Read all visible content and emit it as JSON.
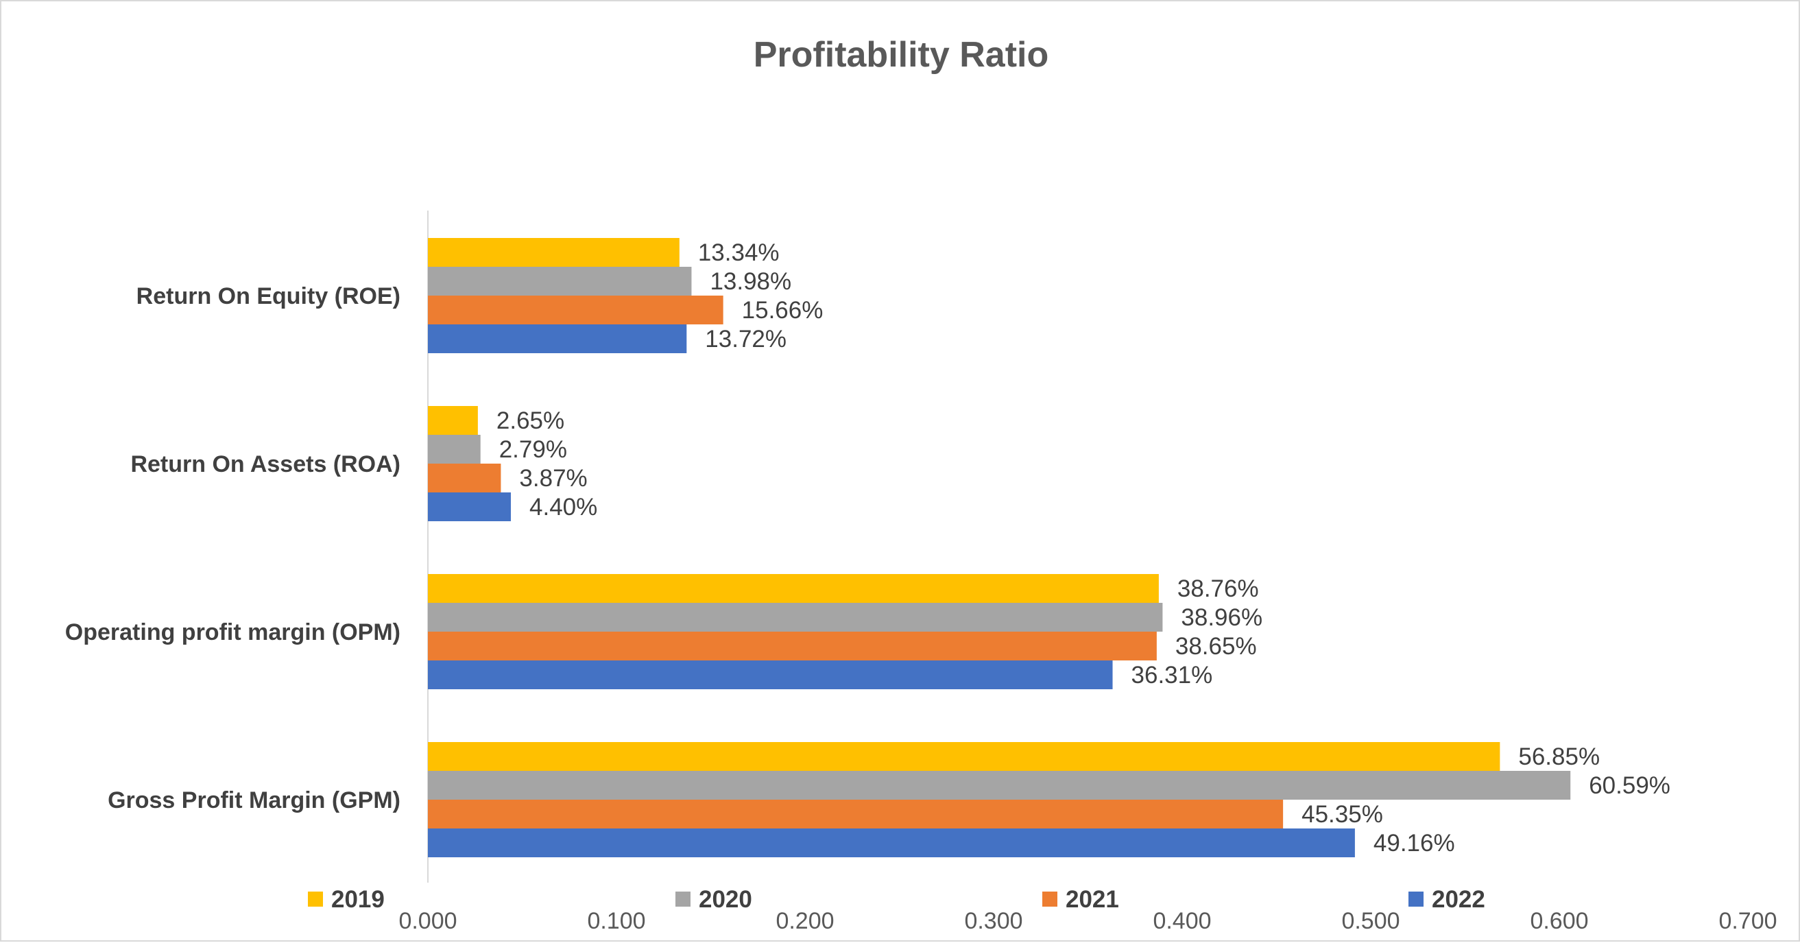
{
  "chart_data": {
    "type": "bar",
    "orientation": "horizontal",
    "title": "Profitability Ratio",
    "xlabel": "",
    "ylabel": "",
    "categories": [
      "Return On Equity (ROE)",
      "Return On Assets (ROA)",
      "Operating profit margin (OPM)",
      "Gross Profit Margin (GPM)"
    ],
    "series": [
      {
        "name": "2019",
        "color": "#FFC000",
        "values": [
          0.1334,
          0.0265,
          0.3876,
          0.5685
        ],
        "labels": [
          "13.34%",
          "2.65%",
          "38.76%",
          "56.85%"
        ]
      },
      {
        "name": "2020",
        "color": "#A5A5A5",
        "values": [
          0.1398,
          0.0279,
          0.3896,
          0.6059
        ],
        "labels": [
          "13.98%",
          "2.79%",
          "38.96%",
          "60.59%"
        ]
      },
      {
        "name": "2021",
        "color": "#ED7D31",
        "values": [
          0.1566,
          0.0387,
          0.3865,
          0.4535
        ],
        "labels": [
          "15.66%",
          "3.87%",
          "38.65%",
          "45.35%"
        ]
      },
      {
        "name": "2022",
        "color": "#4472C4",
        "values": [
          0.1372,
          0.044,
          0.3631,
          0.4916
        ],
        "labels": [
          "13.72%",
          "4.40%",
          "36.31%",
          "49.16%"
        ]
      }
    ],
    "xlim": [
      0,
      0.7
    ],
    "x_ticks": [
      "0.000",
      "0.100",
      "0.200",
      "0.300",
      "0.400",
      "0.500",
      "0.600",
      "0.700"
    ],
    "grid": false,
    "legend_position": "bottom"
  }
}
